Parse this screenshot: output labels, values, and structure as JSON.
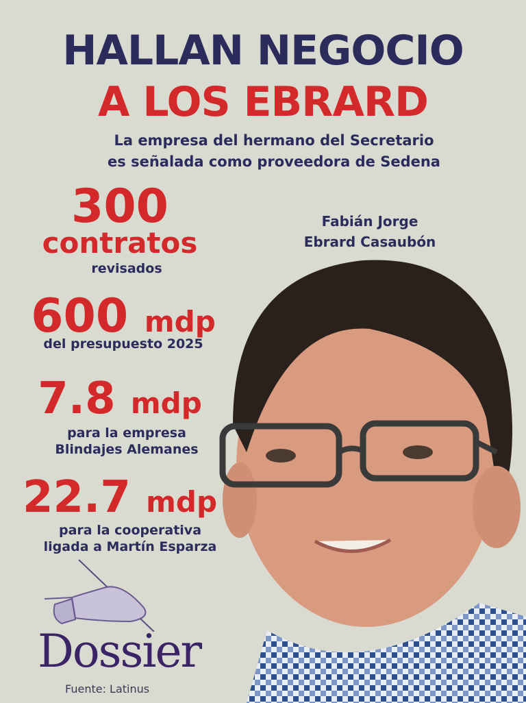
{
  "headline": {
    "line1": "HALLAN NEGOCIO",
    "line2": "A LOS EBRARD"
  },
  "subtitle": {
    "line1": "La empresa del hermano del Secretario",
    "line2": "es señalada como proveedora de Sedena"
  },
  "person": {
    "line1": "Fabián Jorge",
    "line2": "Ebrard Casaubón"
  },
  "stats": [
    {
      "value": "300",
      "unit": "contratos",
      "lines": [
        "revisados"
      ]
    },
    {
      "value": "600",
      "unit": "mdp",
      "lines": [
        "del presupuesto 2025"
      ]
    },
    {
      "value": "7.8",
      "unit": "mdp",
      "lines": [
        "para la empresa",
        "Blindajes Alemanes"
      ]
    },
    {
      "value": "22.7",
      "unit": "mdp",
      "lines": [
        "para la cooperativa",
        "ligada a Martín Esparza"
      ]
    }
  ],
  "logo": {
    "name": "Dossier"
  },
  "source": "Fuente: Latinus",
  "colors": {
    "background": "#d9dad0",
    "navy": "#2b2b5c",
    "red": "#d3292b",
    "logo": "#3a2466"
  }
}
